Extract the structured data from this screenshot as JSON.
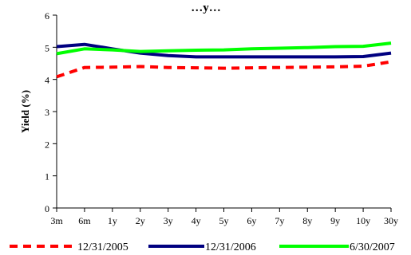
{
  "chart_data": {
    "type": "line",
    "title": "…y…",
    "xlabel": "",
    "ylabel": "Yield (%)",
    "ylim": [
      0,
      6
    ],
    "yticks": [
      0,
      1,
      2,
      3,
      4,
      5,
      6
    ],
    "categories": [
      "3m",
      "6m",
      "1y",
      "2y",
      "3y",
      "4y",
      "5y",
      "6y",
      "7y",
      "8y",
      "9y",
      "10y",
      "30y"
    ],
    "grid": false,
    "legend_position": "bottom",
    "series": [
      {
        "name": "12/31/2005",
        "color": "#ff0000",
        "style": "dashed",
        "values": [
          4.08,
          4.37,
          4.38,
          4.4,
          4.37,
          4.36,
          4.35,
          4.36,
          4.37,
          4.38,
          4.39,
          4.41,
          4.55
        ]
      },
      {
        "name": "12/31/2006",
        "color": "#000080",
        "style": "solid",
        "values": [
          5.02,
          5.09,
          4.95,
          4.82,
          4.74,
          4.7,
          4.7,
          4.7,
          4.7,
          4.7,
          4.7,
          4.71,
          4.82
        ]
      },
      {
        "name": "6/30/2007",
        "color": "#00ff00",
        "style": "solid",
        "values": [
          4.8,
          4.95,
          4.92,
          4.87,
          4.89,
          4.91,
          4.92,
          4.95,
          4.97,
          4.99,
          5.02,
          5.03,
          5.13
        ]
      }
    ]
  }
}
